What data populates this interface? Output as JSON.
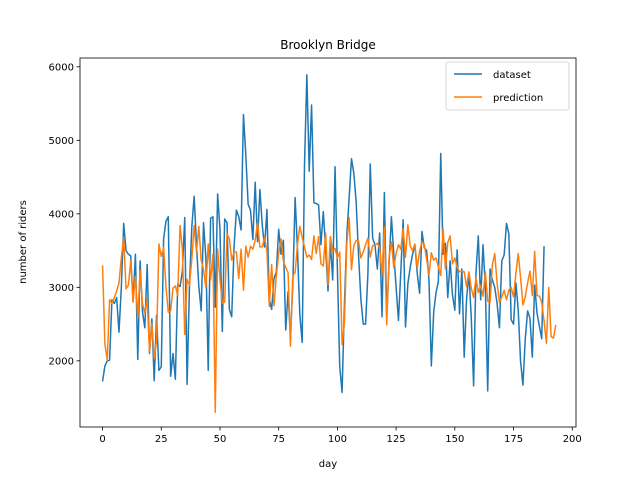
{
  "chart_data": {
    "type": "line",
    "title": "Brooklyn Bridge",
    "xlabel": "day",
    "ylabel": "number of riders",
    "xlim": [
      -9.6,
      201.6
    ],
    "ylim": [
      1100,
      6120
    ],
    "xticks": [
      0,
      25,
      50,
      75,
      100,
      125,
      150,
      175,
      200
    ],
    "yticks": [
      2000,
      3000,
      4000,
      5000,
      6000
    ],
    "grid": false,
    "legend_position": "top-right",
    "colors": {
      "dataset": "#1f77b4",
      "prediction": "#ff7f0e"
    },
    "series": [
      {
        "name": "dataset",
        "values": [
          1720,
          1930,
          2000,
          2010,
          2830,
          2780,
          2860,
          2390,
          3000,
          3870,
          3500,
          3450,
          3430,
          2800,
          3450,
          2020,
          3360,
          2670,
          2450,
          3310,
          2100,
          2570,
          1730,
          2620,
          1870,
          1920,
          3660,
          3900,
          3960,
          1790,
          2100,
          1750,
          3040,
          3010,
          3220,
          3950,
          1680,
          3000,
          3820,
          4240,
          3580,
          3010,
          2680,
          3880,
          3400,
          1870,
          3940,
          3960,
          2730,
          4270,
          3790,
          2400,
          3930,
          3880,
          2700,
          2600,
          3550,
          4050,
          3960,
          3780,
          5350,
          4800,
          4130,
          4050,
          3650,
          4430,
          3620,
          4330,
          3850,
          3550,
          4060,
          2840,
          2700,
          3120,
          3210,
          3790,
          3450,
          3640,
          2420,
          2940,
          2310,
          3020,
          4220,
          3520,
          2630,
          2250,
          4680,
          5890,
          4580,
          5480,
          4150,
          4140,
          4120,
          3580,
          4030,
          3520,
          2950,
          3600,
          3100,
          4640,
          3250,
          1920,
          1570,
          2770,
          3700,
          4220,
          4750,
          4550,
          4160,
          3440,
          2840,
          2500,
          2500,
          3190,
          4680,
          3670,
          3580,
          3250,
          3740,
          2600,
          4290,
          2600,
          3320,
          3960,
          3460,
          3000,
          2550,
          3210,
          3920,
          2460,
          3050,
          3270,
          3450,
          3580,
          3190,
          2920,
          3760,
          3540,
          3500,
          3100,
          1930,
          2660,
          2930,
          3080,
          4820,
          3450,
          3600,
          2860,
          3360,
          2900,
          2690,
          3510,
          2640,
          3250,
          2050,
          2840,
          3190,
          2590,
          1660,
          3190,
          3700,
          2830,
          3580,
          3000,
          1590,
          3250,
          3100,
          3000,
          2780,
          2450,
          3360,
          3440,
          3870,
          3730,
          2560,
          2500,
          3060,
          2690,
          1990,
          1670,
          2300,
          2680,
          2580,
          2050,
          3030,
          2650,
          2470,
          2300,
          3560
        ],
        "x_start": 0
      },
      {
        "name": "prediction",
        "values": [
          3300,
          2230,
          2010,
          2830,
          2780,
          2860,
          2950,
          3060,
          3400,
          3680,
          2980,
          3030,
          3360,
          2800,
          3150,
          2580,
          3230,
          2780,
          2650,
          2840,
          2120,
          2510,
          2030,
          2280,
          3590,
          3420,
          3540,
          3010,
          2660,
          2680,
          2990,
          3020,
          2890,
          3840,
          3510,
          2360,
          3110,
          3030,
          3380,
          3840,
          3480,
          3830,
          3370,
          3240,
          3000,
          3590,
          3100,
          3450,
          1300,
          3520,
          3110,
          2780,
          2800,
          3730,
          3660,
          3370,
          3480,
          3480,
          3120,
          3520,
          2960,
          3560,
          3410,
          3560,
          3520,
          3640,
          3880,
          3550,
          3550,
          3680,
          3490,
          2740,
          3310,
          2750,
          3160,
          3460,
          3660,
          3360,
          3270,
          3200,
          2200,
          3160,
          3200,
          3580,
          3830,
          3680,
          3550,
          3410,
          3440,
          3380,
          3700,
          3460,
          3690,
          3320,
          3290,
          3740,
          3030,
          3690,
          3490,
          3530,
          3400,
          3480,
          2220,
          2520,
          3590,
          3950,
          3240,
          3570,
          3640,
          3630,
          3400,
          3480,
          3580,
          3670,
          3410,
          3570,
          3570,
          3600,
          3540,
          3170,
          3820,
          2490,
          3400,
          3620,
          3270,
          3460,
          3580,
          3520,
          3800,
          3410,
          3850,
          3560,
          3500,
          3590,
          3260,
          3490,
          3620,
          3580,
          3380,
          3170,
          3470,
          3370,
          3400,
          3280,
          3160,
          3800,
          3250,
          3610,
          3700,
          3320,
          3400,
          3270,
          3210,
          3220,
          3210,
          3010,
          3210,
          2990,
          2860,
          3130,
          2930,
          3030,
          2880,
          3210,
          2810,
          2790,
          3310,
          3460,
          3060,
          2790,
          2870,
          2960,
          2830,
          2960,
          3000,
          2870,
          3190,
          3460,
          3130,
          2760,
          2870,
          3060,
          3220,
          2890,
          3490,
          2890,
          2880,
          2800,
          2540,
          2240,
          3000,
          2330,
          2310,
          2490
        ]
      }
    ]
  }
}
